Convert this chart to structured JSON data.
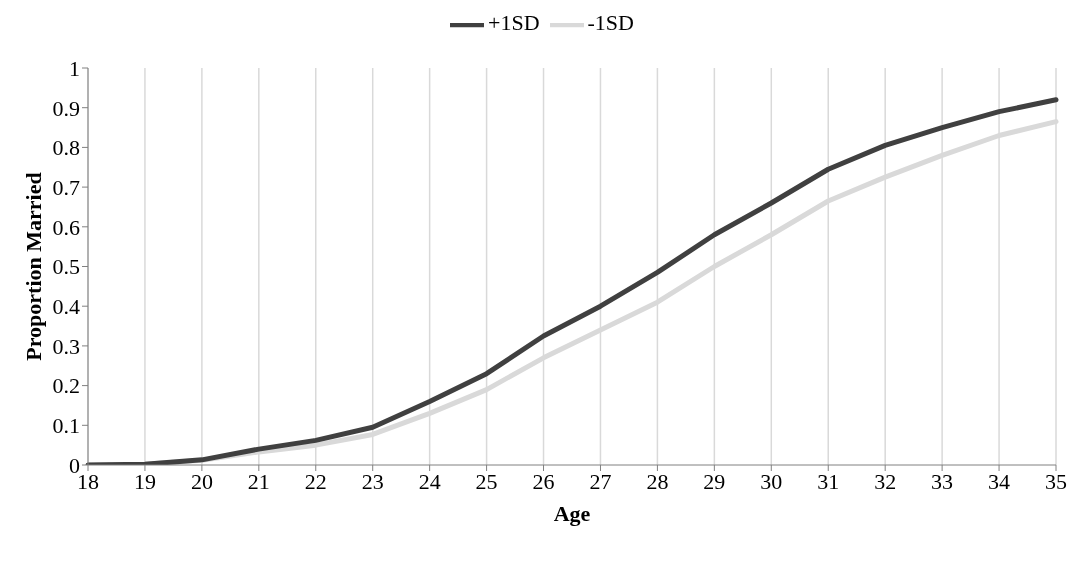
{
  "chart_data": {
    "type": "line",
    "xlabel": "Age",
    "ylabel": "Proportion Married",
    "categories": [
      "18",
      "19",
      "20",
      "21",
      "22",
      "23",
      "24",
      "25",
      "26",
      "27",
      "28",
      "29",
      "30",
      "31",
      "32",
      "33",
      "34",
      "35"
    ],
    "series": [
      {
        "name": "-1SD",
        "color": "#d9d9d9",
        "values": [
          0,
          0.002,
          0.012,
          0.033,
          0.05,
          0.077,
          0.13,
          0.19,
          0.27,
          0.34,
          0.41,
          0.5,
          0.58,
          0.665,
          0.725,
          0.78,
          0.83,
          0.865
        ]
      },
      {
        "name": "+1SD",
        "color": "#404040",
        "values": [
          0,
          0.002,
          0.013,
          0.04,
          0.062,
          0.095,
          0.16,
          0.23,
          0.325,
          0.4,
          0.485,
          0.58,
          0.66,
          0.745,
          0.805,
          0.85,
          0.89,
          0.92
        ]
      }
    ],
    "ylim": [
      0,
      1
    ],
    "yticks": [
      0,
      0.1,
      0.2,
      0.3,
      0.4,
      0.5,
      0.6,
      0.7,
      0.8,
      0.9,
      1
    ],
    "grid": "x",
    "legend": "top",
    "marker": "none",
    "line_style": "solid"
  }
}
